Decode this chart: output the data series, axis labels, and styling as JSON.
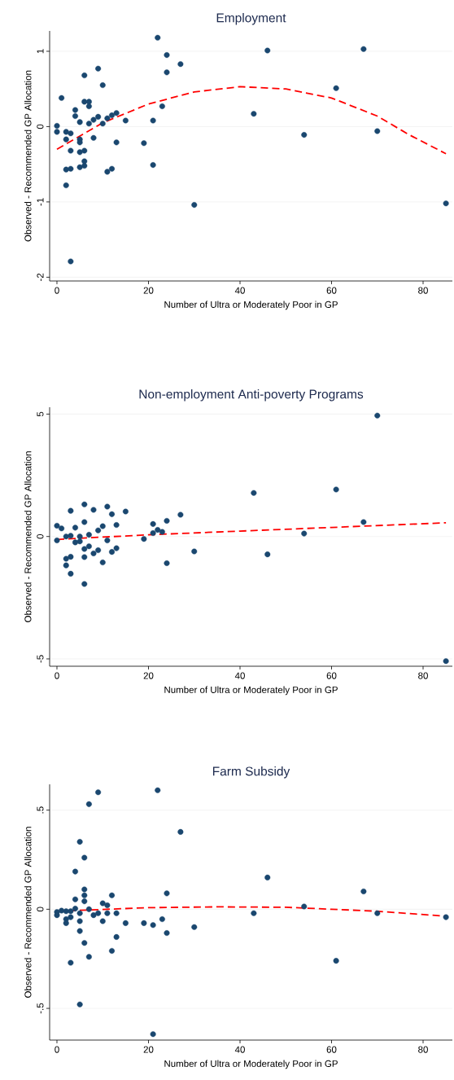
{
  "chart_data": [
    {
      "type": "scatter",
      "title": "Employment",
      "xlabel": "Number of Ultra or Moderately Poor in GP",
      "ylabel": "Observed - Recommended GP Allocation",
      "xlim": [
        -1.6,
        86.4
      ],
      "ylim": [
        -2.05,
        1.27
      ],
      "xticks": [
        0,
        20,
        40,
        60,
        80
      ],
      "yticks": [
        -2,
        -1,
        0,
        1
      ],
      "grid": "y",
      "marker": "circle",
      "series": [
        {
          "color": "#1a476f",
          "x": [
            0,
            0,
            1,
            2,
            2,
            2,
            2,
            3,
            3,
            3,
            3,
            4,
            4,
            5,
            5,
            5,
            5,
            5,
            6,
            6,
            6,
            6,
            6,
            7,
            7,
            7,
            8,
            8,
            9,
            9,
            10,
            10,
            11,
            11,
            12,
            12,
            13,
            13,
            15,
            19,
            21,
            21,
            22,
            23,
            24,
            24,
            27,
            30,
            43,
            46,
            54,
            61,
            67,
            70,
            85
          ],
          "values": [
            0.01,
            -0.07,
            0.38,
            -0.07,
            -0.17,
            -0.57,
            -0.78,
            -0.09,
            -0.32,
            -0.56,
            -1.79,
            0.22,
            0.14,
            0.06,
            -0.17,
            -0.21,
            -0.34,
            -0.54,
            0.68,
            0.33,
            -0.32,
            -0.46,
            -0.52,
            0.33,
            0.27,
            0.04,
            0.09,
            -0.15,
            0.77,
            0.13,
            0.55,
            0.04,
            0.11,
            -0.6,
            0.15,
            -0.56,
            0.18,
            -0.21,
            0.08,
            -0.22,
            0.08,
            -0.51,
            1.18,
            0.27,
            0.95,
            0.72,
            0.83,
            -1.04,
            0.17,
            1.01,
            -0.11,
            0.51,
            1.03,
            -0.06,
            -1.02
          ]
        },
        {
          "type": "line",
          "marker": "none",
          "line_style": "dashed",
          "color": "#ff0000",
          "x": [
            0,
            10,
            20,
            30,
            40,
            50,
            60,
            70,
            77,
            85
          ],
          "values": [
            -0.3,
            0.05,
            0.3,
            0.46,
            0.53,
            0.5,
            0.38,
            0.14,
            -0.11,
            -0.36
          ]
        }
      ]
    },
    {
      "type": "scatter",
      "title": "Non-employment Anti-poverty Programs",
      "xlabel": "Number of Ultra or Moderately Poor in GP",
      "ylabel": "Observed - Recommended GP Allocation",
      "xlim": [
        -1.6,
        86.4
      ],
      "ylim": [
        -5.3,
        5.28
      ],
      "xticks": [
        0,
        20,
        40,
        60,
        80
      ],
      "yticks": [
        -5,
        0,
        5
      ],
      "grid": "y",
      "marker": "circle",
      "series": [
        {
          "color": "#1a476f",
          "x": [
            0,
            0,
            1,
            2,
            2,
            2,
            3,
            3,
            3,
            3,
            4,
            4,
            5,
            5,
            6,
            6,
            6,
            6,
            6,
            7,
            7,
            8,
            8,
            9,
            9,
            10,
            10,
            11,
            11,
            12,
            12,
            13,
            13,
            15,
            19,
            21,
            21,
            22,
            23,
            24,
            24,
            27,
            30,
            43,
            46,
            54,
            61,
            67,
            70,
            85
          ],
          "values": [
            0.44,
            -0.16,
            0.33,
            0,
            -0.91,
            -1.18,
            1.05,
            0.03,
            -0.83,
            -1.52,
            0.36,
            -0.24,
            0,
            -0.2,
            1.31,
            0.59,
            -0.51,
            -0.84,
            -1.94,
            0.07,
            -0.4,
            1.09,
            -0.69,
            0.25,
            -0.56,
            0.42,
            -1.06,
            1.22,
            -0.16,
            0.91,
            -0.63,
            0.47,
            -0.48,
            1.02,
            -0.1,
            0.51,
            0.14,
            0.27,
            0.19,
            0.64,
            -1.09,
            0.89,
            -0.61,
            1.78,
            -0.73,
            0.12,
            1.92,
            0.59,
            4.94,
            -5.09
          ]
        },
        {
          "type": "line",
          "marker": "none",
          "line_style": "dashed",
          "color": "#ff0000",
          "x": [
            0,
            20,
            40,
            60,
            85
          ],
          "values": [
            -0.12,
            0.07,
            0.22,
            0.37,
            0.56
          ]
        }
      ]
    },
    {
      "type": "scatter",
      "title": "Farm Subsidy",
      "xlabel": "Number of Ultra or Moderately Poor in GP",
      "ylabel": "Observed - Recommended GP Allocation",
      "xlim": [
        -1.6,
        86.4
      ],
      "ylim": [
        -0.66,
        0.63
      ],
      "xticks": [
        0,
        20,
        40,
        60,
        80
      ],
      "yticks": [
        {
          "value": -0.5,
          "label": "-.5"
        },
        0,
        {
          "value": 0.5,
          "label": ".5"
        }
      ],
      "grid": "y",
      "marker": "circle",
      "series": [
        {
          "color": "#1a476f",
          "x": [
            0,
            0,
            1,
            2,
            2,
            2,
            3,
            3,
            3,
            4,
            4,
            4,
            5,
            5,
            5,
            5,
            5,
            6,
            6,
            6,
            6,
            6,
            7,
            7,
            7,
            8,
            9,
            9,
            10,
            10,
            11,
            11,
            12,
            12,
            13,
            13,
            15,
            19,
            21,
            21,
            22,
            23,
            24,
            24,
            27,
            30,
            43,
            46,
            54,
            61,
            67,
            70,
            85
          ],
          "values": [
            -0.014,
            -0.03,
            -0.007,
            -0.01,
            -0.05,
            -0.07,
            -0.01,
            -0.04,
            -0.27,
            0.19,
            0.05,
            0.003,
            0.34,
            -0.02,
            -0.06,
            -0.11,
            -0.48,
            0.26,
            0.1,
            0.07,
            0.04,
            -0.17,
            0.53,
            0,
            -0.24,
            -0.03,
            -0.02,
            0.59,
            0.03,
            -0.06,
            0.02,
            -0.02,
            0.07,
            -0.21,
            -0.02,
            -0.14,
            -0.07,
            -0.07,
            -0.08,
            -0.63,
            0.6,
            -0.05,
            0.08,
            -0.12,
            0.39,
            -0.09,
            -0.02,
            0.16,
            0.014,
            -0.26,
            0.09,
            -0.02,
            -0.04
          ]
        },
        {
          "type": "line",
          "marker": "none",
          "line_style": "dashed",
          "color": "#ff0000",
          "x": [
            0,
            20,
            35,
            50,
            60,
            70,
            85
          ],
          "values": [
            -0.01,
            0.008,
            0.012,
            0.01,
            0.0,
            -0.01,
            -0.035
          ]
        }
      ]
    }
  ]
}
